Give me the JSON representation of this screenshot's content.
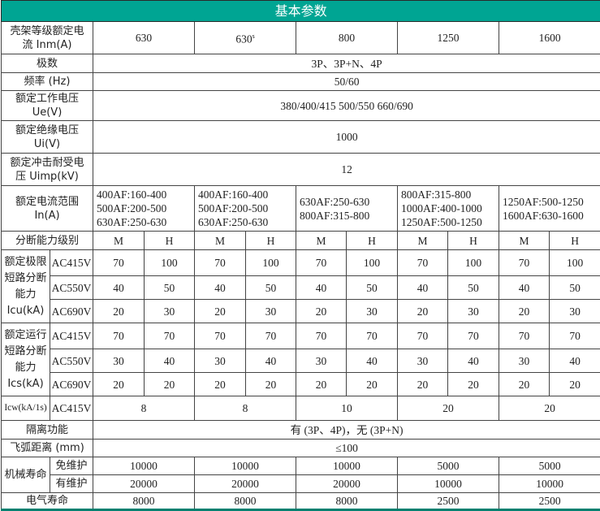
{
  "header": {
    "title": "基本参数"
  },
  "accent_color": "#00a593",
  "frame_current": {
    "label": "壳架等级额定电流 Inm(A)",
    "values": [
      "630",
      "630",
      "800",
      "1250",
      "1600"
    ],
    "value_2_superscript": "s"
  },
  "poles": {
    "label": "极数",
    "value": "3P、3P+N、4P"
  },
  "frequency": {
    "label": "频率 (Hz)",
    "value": "50/60"
  },
  "ue": {
    "label": "额定工作电压 Ue(V)",
    "value": "380/400/415    500/550    660/690"
  },
  "ui": {
    "label": "额定绝缘电压 Ui(V)",
    "value": "1000"
  },
  "uimp": {
    "label": "额定冲击耐受电压 Uimp(kV)",
    "value": "12"
  },
  "current_range": {
    "label": "额定电流范围 In(A)",
    "values": [
      [
        "400AF:160-400",
        "500AF:200-500",
        "630AF:250-630"
      ],
      [
        "400AF:160-400",
        "500AF:200-500",
        "630AF:250-630"
      ],
      [
        "630AF:250-630",
        "800AF:315-800"
      ],
      [
        "800AF:315-800",
        "1000AF:400-1000",
        "1250AF:500-1250"
      ],
      [
        "1250AF:500-1250",
        "1600AF:630-1600"
      ]
    ]
  },
  "breaking_grade": {
    "label": "分断能力级别",
    "grades": [
      "M",
      "H"
    ]
  },
  "icu": {
    "label": "额定极限短路分断能力Icu(kA)",
    "rows": [
      {
        "voltage": "AC415V",
        "values": [
          "70",
          "100",
          "70",
          "100",
          "70",
          "100",
          "70",
          "100",
          "70",
          "100"
        ]
      },
      {
        "voltage": "AC550V",
        "values": [
          "40",
          "50",
          "40",
          "50",
          "40",
          "50",
          "40",
          "50",
          "40",
          "50"
        ]
      },
      {
        "voltage": "AC690V",
        "values": [
          "20",
          "30",
          "20",
          "30",
          "20",
          "30",
          "20",
          "30",
          "20",
          "30"
        ]
      }
    ]
  },
  "ics": {
    "label": "额定运行短路分断能力Ics(kA)",
    "rows": [
      {
        "voltage": "AC415V",
        "values": [
          "70",
          "70",
          "70",
          "70",
          "70",
          "70",
          "70",
          "70",
          "70",
          "70"
        ]
      },
      {
        "voltage": "AC550V",
        "values": [
          "30",
          "40",
          "30",
          "40",
          "30",
          "40",
          "30",
          "40",
          "30",
          "40"
        ]
      },
      {
        "voltage": "AC690V",
        "values": [
          "20",
          "20",
          "20",
          "20",
          "20",
          "20",
          "20",
          "20",
          "20",
          "20"
        ]
      }
    ]
  },
  "icw": {
    "label": "Icw(kA/1s)",
    "voltage": "AC415V",
    "values": [
      "8",
      "8",
      "10",
      "20",
      "20"
    ]
  },
  "isolation": {
    "label": "隔离功能",
    "value": "有 (3P、4P)，无 (3P+N)"
  },
  "arc_distance": {
    "label": "飞弧距离 (mm)",
    "value": "≤100"
  },
  "mechanical_life": {
    "label": "机械寿命",
    "rows": [
      {
        "label": "免维护",
        "values": [
          "10000",
          "10000",
          "10000",
          "5000",
          "5000"
        ]
      },
      {
        "label": "有维护",
        "values": [
          "20000",
          "20000",
          "20000",
          "10000",
          "10000"
        ]
      }
    ]
  },
  "electrical_life": {
    "label": "电气寿命",
    "values": [
      "8000",
      "8000",
      "8000",
      "2500",
      "2500"
    ]
  }
}
